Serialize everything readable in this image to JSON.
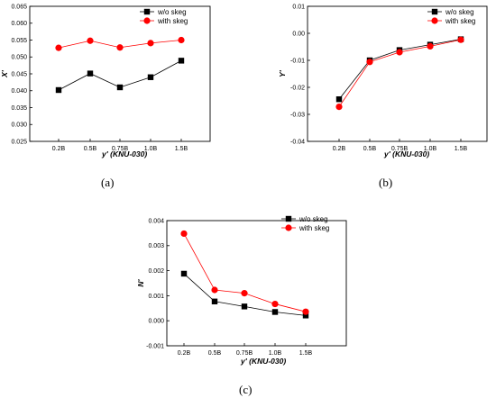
{
  "chart_data": [
    {
      "type": "line",
      "panel_label": "(a)",
      "xlabel": "y' (KNU-030)",
      "ylabel": "X'",
      "categories": [
        "0.2B",
        "0.5B",
        "0.75B",
        "1.0B",
        "1.5B"
      ],
      "ylim": [
        0.025,
        0.065
      ],
      "yticks": [
        "0.025",
        "0.030",
        "0.035",
        "0.040",
        "0.045",
        "0.050",
        "0.055",
        "0.060",
        "0.065"
      ],
      "legend_position": "top-right",
      "grid": false,
      "series": [
        {
          "name": "w/o skeg",
          "color": "#000000",
          "marker": "square",
          "values": [
            0.0402,
            0.0451,
            0.041,
            0.044,
            0.0489
          ]
        },
        {
          "name": "with skeg",
          "color": "#ff0000",
          "marker": "circle",
          "values": [
            0.0527,
            0.0548,
            0.0528,
            0.0541,
            0.055
          ]
        }
      ]
    },
    {
      "type": "line",
      "panel_label": "(b)",
      "xlabel": "y' (KNU-030)",
      "ylabel": "Y'",
      "categories": [
        "0.2B",
        "0.5B",
        "0.75B",
        "1.0B",
        "1.5B"
      ],
      "ylim": [
        -0.04,
        0.01
      ],
      "yticks": [
        "-0.04",
        "-0.03",
        "-0.02",
        "-0.01",
        "0.00",
        "0.01"
      ],
      "legend_position": "top-right",
      "grid": false,
      "series": [
        {
          "name": "w/o skeg",
          "color": "#000000",
          "marker": "square",
          "values": [
            -0.0244,
            -0.01,
            -0.0062,
            -0.0042,
            -0.0022
          ]
        },
        {
          "name": "with skeg",
          "color": "#ff0000",
          "marker": "circle",
          "values": [
            -0.0272,
            -0.0106,
            -0.007,
            -0.0048,
            -0.0024
          ]
        }
      ]
    },
    {
      "type": "line",
      "panel_label": "(c)",
      "xlabel": "y' (KNU-030)",
      "ylabel": "N'",
      "categories": [
        "0.2B",
        "0.5B",
        "0.75B",
        "1.0B",
        "1.5B"
      ],
      "ylim": [
        -0.001,
        0.004
      ],
      "yticks": [
        "-0.001",
        "0.000",
        "0.001",
        "0.002",
        "0.003",
        "0.004"
      ],
      "legend_position": "top-right",
      "grid": false,
      "series": [
        {
          "name": "w/o skeg",
          "color": "#000000",
          "marker": "square",
          "values": [
            0.00188,
            0.00077,
            0.00057,
            0.00035,
            0.00021
          ]
        },
        {
          "name": "with skeg",
          "color": "#ff0000",
          "marker": "circle",
          "values": [
            0.00348,
            0.00123,
            0.0011,
            0.00067,
            0.00036
          ]
        }
      ]
    }
  ]
}
